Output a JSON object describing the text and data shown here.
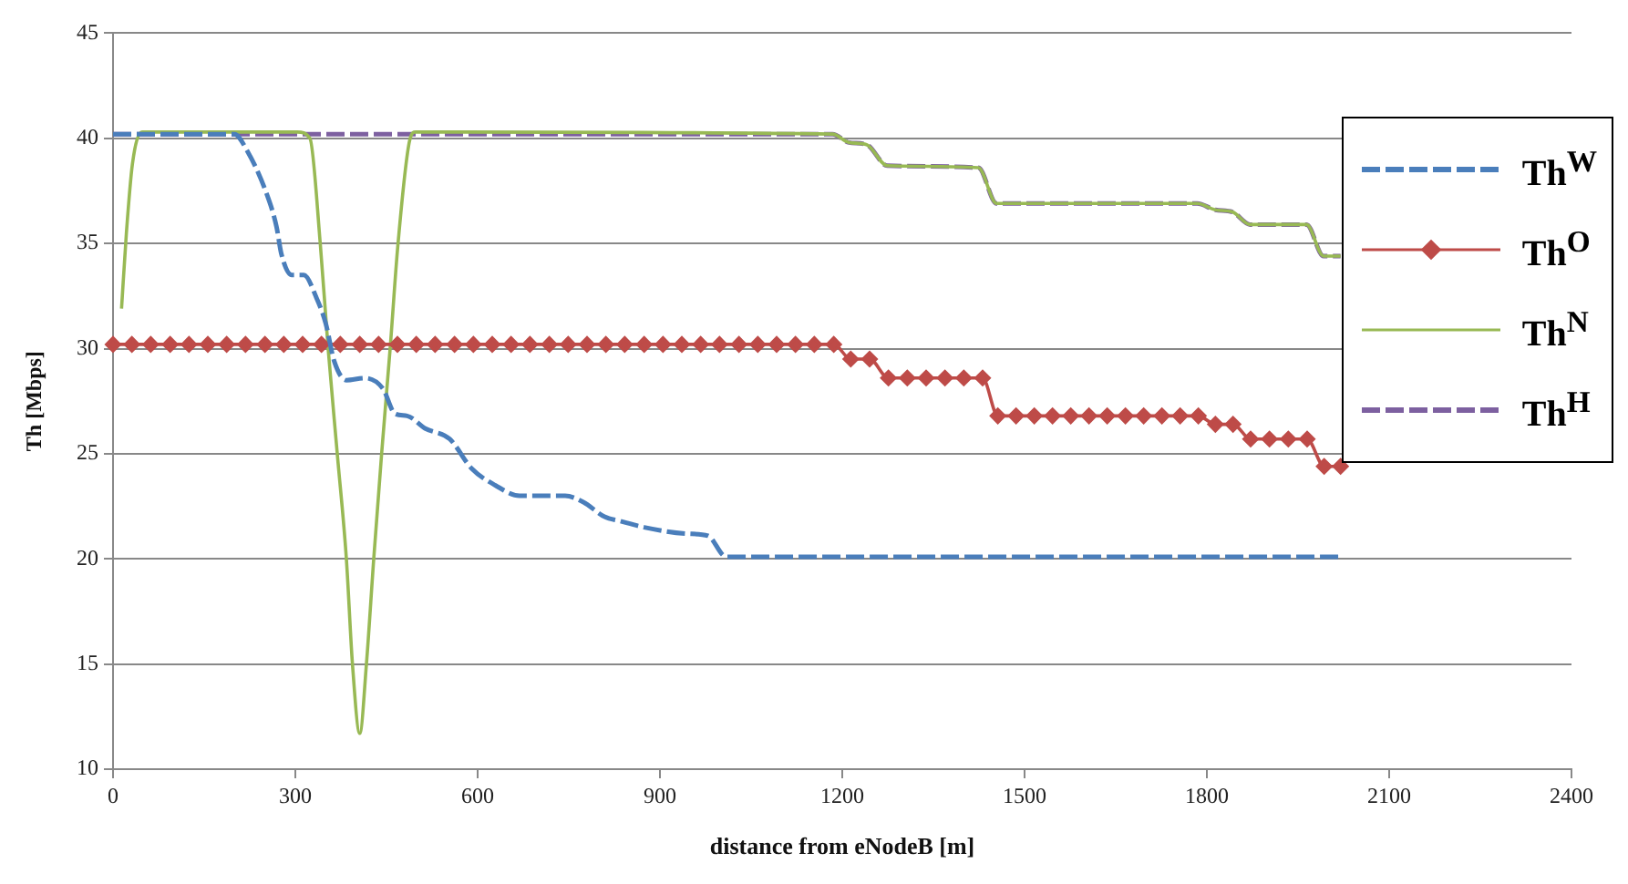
{
  "chart_data": {
    "type": "line",
    "xlabel": "distance from eNodeB [m]",
    "ylabel": "Th [Mbps]",
    "xlim": [
      0,
      2400
    ],
    "xticks": [
      0,
      300,
      600,
      900,
      1200,
      1500,
      1800,
      2100,
      2400
    ],
    "ylim": [
      10,
      45
    ],
    "yticks": [
      10,
      15,
      20,
      25,
      30,
      35,
      40,
      45
    ],
    "grid": "y",
    "legend": "top right",
    "series": [
      {
        "name": "Th$^{W}$",
        "color": "#4a7ebb",
        "line_style": "dashed",
        "marker": "none",
        "x": [
          0,
          200,
          219,
          251,
          269,
          277,
          294,
          314,
          335,
          350,
          364,
          384,
          414,
          444,
          464,
          484,
          514,
          554,
          590,
          629,
          669,
          744,
          774,
          809,
          834,
          874,
          944,
          979,
          1009,
          2020
        ],
        "values": [
          40.2,
          40.2,
          39.5,
          37.5,
          35.8,
          34.5,
          33.5,
          33.5,
          32.4,
          31.2,
          29.4,
          28.5,
          28.6,
          28.1,
          26.9,
          26.8,
          26.2,
          25.7,
          24.3,
          23.5,
          23.0,
          23.0,
          22.7,
          22.0,
          21.8,
          21.5,
          21.2,
          21.1,
          20.1,
          20.1
        ]
      },
      {
        "name": "Th$^{O}$",
        "color": "#be4b48",
        "line_style": "solid",
        "marker": "diamond",
        "x": [
          0,
          31,
          62,
          94,
          125,
          156,
          187,
          218,
          250,
          281,
          312,
          343,
          374,
          406,
          437,
          468,
          499,
          530,
          562,
          593,
          624,
          655,
          686,
          718,
          749,
          780,
          811,
          842,
          874,
          905,
          936,
          967,
          998,
          1030,
          1061,
          1092,
          1123,
          1154,
          1186,
          1214,
          1245,
          1276,
          1307,
          1338,
          1369,
          1400,
          1431,
          1456,
          1486,
          1516,
          1546,
          1576,
          1606,
          1636,
          1666,
          1696,
          1726,
          1756,
          1786,
          1814,
          1843,
          1872,
          1903,
          1934,
          1965,
          1993,
          2020
        ],
        "values": [
          30.2,
          30.2,
          30.2,
          30.2,
          30.2,
          30.2,
          30.2,
          30.2,
          30.2,
          30.2,
          30.2,
          30.2,
          30.2,
          30.2,
          30.2,
          30.2,
          30.2,
          30.2,
          30.2,
          30.2,
          30.2,
          30.2,
          30.2,
          30.2,
          30.2,
          30.2,
          30.2,
          30.2,
          30.2,
          30.2,
          30.2,
          30.2,
          30.2,
          30.2,
          30.2,
          30.2,
          30.2,
          30.2,
          30.2,
          29.5,
          29.5,
          28.6,
          28.6,
          28.6,
          28.6,
          28.6,
          28.6,
          26.8,
          26.8,
          26.8,
          26.8,
          26.8,
          26.8,
          26.8,
          26.8,
          26.8,
          26.8,
          26.8,
          26.8,
          26.4,
          26.4,
          25.7,
          25.7,
          25.7,
          25.7,
          24.4,
          24.4
        ]
      },
      {
        "name": "Th$^{N}$",
        "color": "#98b954",
        "line_style": "solid",
        "marker": "none",
        "x": [
          14,
          22,
          32,
          48,
          303,
          324,
          341,
          354,
          369,
          384,
          394,
          406,
          417,
          429,
          442,
          456,
          469,
          489,
          498,
          1184,
          1211,
          1240,
          1274,
          1424,
          1454,
          1784,
          1814,
          1842,
          1871,
          1964,
          1992,
          2020
        ],
        "values": [
          31.9,
          35.5,
          38.8,
          40.3,
          40.3,
          40.0,
          35.0,
          30.0,
          25.0,
          20.0,
          15.0,
          11.7,
          15.0,
          20.0,
          25.0,
          30.0,
          35.0,
          40.0,
          40.3,
          40.2,
          39.8,
          39.7,
          38.7,
          38.6,
          36.9,
          36.9,
          36.6,
          36.5,
          35.9,
          35.9,
          34.4,
          34.4
        ]
      },
      {
        "name": "Th$^{H}$",
        "color": "#7d60a0",
        "line_style": "dashed",
        "marker": "none",
        "x": [
          0,
          1184,
          1211,
          1240,
          1274,
          1424,
          1454,
          1784,
          1814,
          1842,
          1871,
          1964,
          1992,
          2020
        ],
        "values": [
          40.2,
          40.2,
          39.8,
          39.7,
          38.7,
          38.6,
          36.9,
          36.9,
          36.6,
          36.5,
          35.9,
          35.9,
          34.4,
          34.4
        ]
      }
    ]
  }
}
